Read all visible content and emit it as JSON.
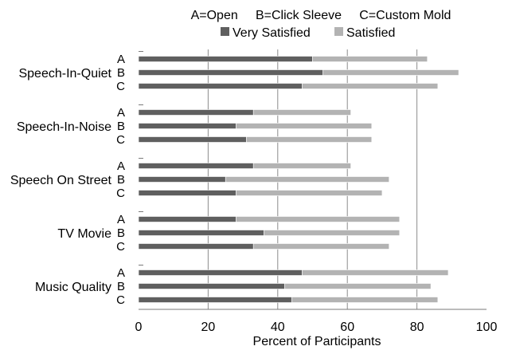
{
  "chart_data": {
    "type": "bar",
    "orientation": "horizontal",
    "stacked": true,
    "title_line": "A=Open     B=Click Sleeve     C=Custom Mold",
    "xlabel": "Percent of Participants",
    "xlim": [
      0,
      100
    ],
    "xticks": [
      "0",
      "20",
      "40",
      "60",
      "80",
      "100"
    ],
    "groups": [
      "Speech-In-Quiet",
      "Speech-In-Noise",
      "Speech On Street",
      "TV Movie",
      "Music Quality"
    ],
    "subcategories": [
      "A",
      "B",
      "C"
    ],
    "legend": {
      "placement": "top-center",
      "entries": [
        "Very Satisfied",
        "Satisfied"
      ]
    },
    "colors": {
      "Very Satisfied": "#5f5f5f",
      "Satisfied": "#b3b3b3",
      "grid": "#8c8c8c"
    },
    "grid": true,
    "series": [
      {
        "name": "Very Satisfied",
        "values": [
          [
            50,
            53,
            47
          ],
          [
            33,
            28,
            31
          ],
          [
            33,
            25,
            28
          ],
          [
            28,
            36,
            33
          ],
          [
            47,
            42,
            44
          ]
        ]
      },
      {
        "name": "Satisfied",
        "values": [
          [
            33,
            39,
            39
          ],
          [
            28,
            39,
            36
          ],
          [
            28,
            47,
            42
          ],
          [
            47,
            39,
            39
          ],
          [
            42,
            42,
            42
          ]
        ]
      }
    ]
  }
}
